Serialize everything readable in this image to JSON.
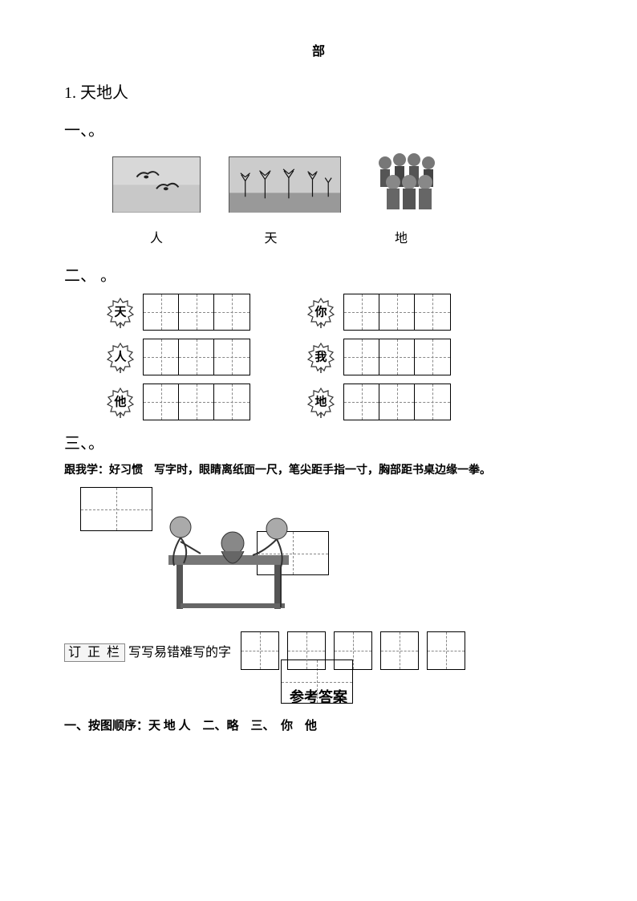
{
  "header_char": "部",
  "lesson_title": "1. 天地人",
  "section1": {
    "heading": "一、。",
    "labels": [
      "人",
      "天",
      "地"
    ],
    "label_widths": [
      110,
      175,
      150
    ]
  },
  "section2": {
    "heading": "二、  。",
    "rows": [
      {
        "left_char": "天",
        "right_char": "你"
      },
      {
        "left_char": "人",
        "right_char": "我"
      },
      {
        "left_char": "他",
        "right_char": "地"
      }
    ],
    "cells_per_grid": 3
  },
  "section3": {
    "heading": "三、。",
    "tip": "跟我学：好习惯　写字时，眼睛离纸面一尺，笔尖距手指一寸，胸部距书桌边缘一拳。"
  },
  "correction": {
    "label_boxed": "订 正 栏",
    "label_text": "写写易错难写的字",
    "grid_count": 5
  },
  "answers": {
    "title": "参考答案",
    "text": "一、按图顺序：天  地  人　二、略　三、　你　他"
  },
  "colors": {
    "text": "#000000",
    "grid_border": "#000000",
    "dashed": "#888888",
    "img_bg": "#bbbbbb"
  }
}
